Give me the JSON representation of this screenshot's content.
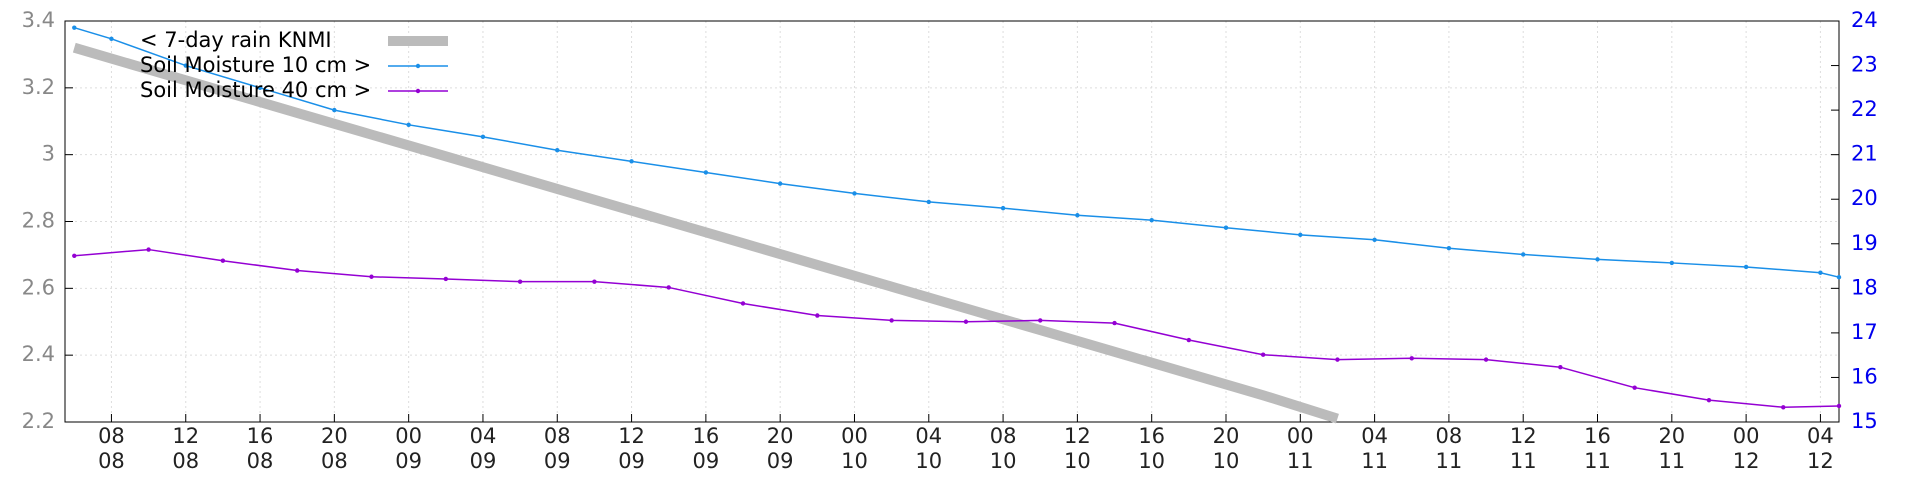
{
  "chart_data": {
    "type": "line",
    "legend": "upper left",
    "grid": true,
    "xlim": [
      5.5,
      101
    ],
    "xticks": [
      {
        "value": 8,
        "label": "08\n08"
      },
      {
        "value": 12,
        "label": "12\n08"
      },
      {
        "value": 16,
        "label": "16\n08"
      },
      {
        "value": 20,
        "label": "20\n08"
      },
      {
        "value": 24,
        "label": "00\n09"
      },
      {
        "value": 28,
        "label": "04\n09"
      },
      {
        "value": 32,
        "label": "08\n09"
      },
      {
        "value": 36,
        "label": "12\n09"
      },
      {
        "value": 40,
        "label": "16\n09"
      },
      {
        "value": 44,
        "label": "20\n09"
      },
      {
        "value": 48,
        "label": "00\n10"
      },
      {
        "value": 52,
        "label": "04\n10"
      },
      {
        "value": 56,
        "label": "08\n10"
      },
      {
        "value": 60,
        "label": "12\n10"
      },
      {
        "value": 64,
        "label": "16\n10"
      },
      {
        "value": 68,
        "label": "20\n10"
      },
      {
        "value": 72,
        "label": "00\n11"
      },
      {
        "value": 76,
        "label": "04\n11"
      },
      {
        "value": 80,
        "label": "08\n11"
      },
      {
        "value": 84,
        "label": "12\n11"
      },
      {
        "value": 88,
        "label": "16\n11"
      },
      {
        "value": 92,
        "label": "20\n11"
      },
      {
        "value": 96,
        "label": "00\n12"
      },
      {
        "value": 100,
        "label": "04\n12"
      }
    ],
    "ylim": [
      2.2,
      3.4
    ],
    "yticks": [
      2.2,
      2.4,
      2.6,
      2.8,
      3,
      3.2,
      3.4
    ],
    "y2lim": [
      15,
      24
    ],
    "y2ticks": [
      15,
      16,
      17,
      18,
      19,
      20,
      21,
      22,
      23,
      24
    ],
    "series": [
      {
        "name": "< 7-day rain KNMI",
        "color": "#bbbbbb",
        "axis": "y",
        "width": 10,
        "markers": false,
        "x": [
          6,
          10,
          14,
          18,
          22,
          26,
          30,
          34,
          38,
          42,
          46,
          50,
          54,
          58,
          62,
          66,
          70,
          74
        ],
        "values": [
          3.32,
          3.255,
          3.19,
          3.125,
          3.06,
          2.995,
          2.93,
          2.865,
          2.8,
          2.735,
          2.67,
          2.605,
          2.54,
          2.475,
          2.41,
          2.345,
          2.28,
          2.21
        ]
      },
      {
        "name": "Soil Moisture 10 cm >",
        "color": "#1a8fe8",
        "axis": "y2",
        "width": 1.5,
        "markers": true,
        "x": [
          6,
          8,
          12,
          16,
          20,
          24,
          28,
          32,
          36,
          40,
          44,
          48,
          52,
          56,
          60,
          64,
          68,
          72,
          76,
          80,
          84,
          88,
          92,
          96,
          100,
          101
        ],
        "values": [
          23.85,
          23.6,
          23.0,
          22.5,
          22.0,
          21.67,
          21.4,
          21.1,
          20.85,
          20.6,
          20.35,
          20.13,
          19.94,
          19.8,
          19.64,
          19.53,
          19.36,
          19.2,
          19.09,
          18.9,
          18.76,
          18.65,
          18.57,
          18.48,
          18.35,
          18.25
        ]
      },
      {
        "name": "Soil Moisture 40 cm >",
        "color": "#9400d3",
        "axis": "y2",
        "width": 1.5,
        "markers": true,
        "x": [
          6,
          10,
          14,
          18,
          22,
          26,
          30,
          34,
          38,
          42,
          46,
          50,
          54,
          58,
          62,
          66,
          70,
          74,
          78,
          82,
          86,
          90,
          94,
          98,
          101
        ],
        "values": [
          18.73,
          18.87,
          18.62,
          18.4,
          18.26,
          18.21,
          18.15,
          18.15,
          18.02,
          17.66,
          17.39,
          17.28,
          17.25,
          17.28,
          17.22,
          16.84,
          16.51,
          16.4,
          16.43,
          16.4,
          16.23,
          15.77,
          15.49,
          15.33,
          15.36
        ]
      }
    ]
  }
}
